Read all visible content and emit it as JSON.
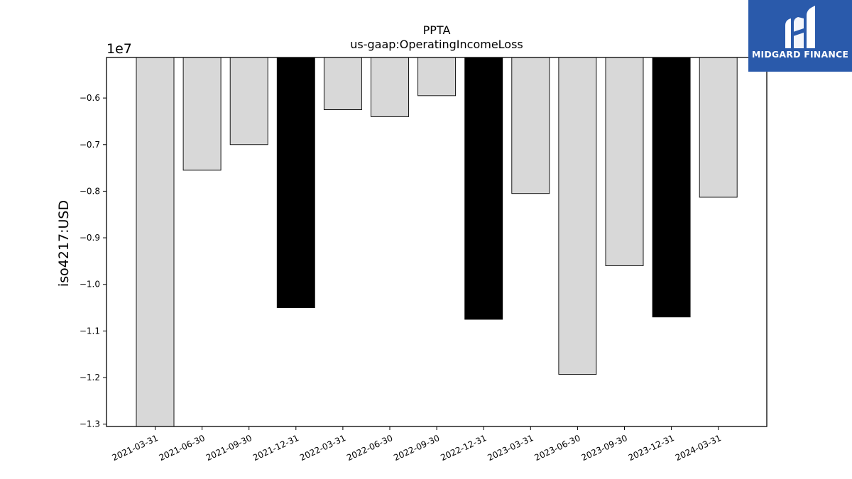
{
  "chart_data": {
    "type": "bar",
    "title": "PPTA",
    "subtitle": "us-gaap:OperatingIncomeLoss",
    "ylabel": "iso4217:USD",
    "xlabel": "",
    "y_offset_label": "1e7",
    "categories": [
      "2021-03-31",
      "2021-06-30",
      "2021-09-30",
      "2021-12-31",
      "2022-03-31",
      "2022-06-30",
      "2022-09-30",
      "2022-12-31",
      "2023-03-31",
      "2023-06-30",
      "2023-09-30",
      "2023-12-31",
      "2024-03-31"
    ],
    "values": [
      -13050000,
      -7550000,
      -7000000,
      -10500000,
      -6250000,
      -6400000,
      -5950000,
      -10750000,
      -8050000,
      -11930000,
      -9600000,
      -10700000,
      -8130000
    ],
    "highlight": [
      false,
      false,
      false,
      true,
      false,
      false,
      false,
      true,
      false,
      false,
      false,
      true,
      false
    ],
    "ylim": [
      -13050000,
      -5130000
    ],
    "yticks": [
      -6000000,
      -7000000,
      -8000000,
      -9000000,
      -10000000,
      -11000000,
      -12000000,
      -13000000
    ],
    "ytick_labels": [
      "−0.6",
      "−0.7",
      "−0.8",
      "−0.9",
      "−1.0",
      "−1.1",
      "−1.2",
      "−1.3"
    ],
    "grid": false,
    "colors": {
      "bar": "#d8d8d8",
      "highlight_bar": "#000000",
      "edge": "#000000"
    }
  },
  "logo": {
    "text": "MIDGARD FINANCE",
    "background": "#2a5aab",
    "icon": "midgard-logo-icon"
  }
}
